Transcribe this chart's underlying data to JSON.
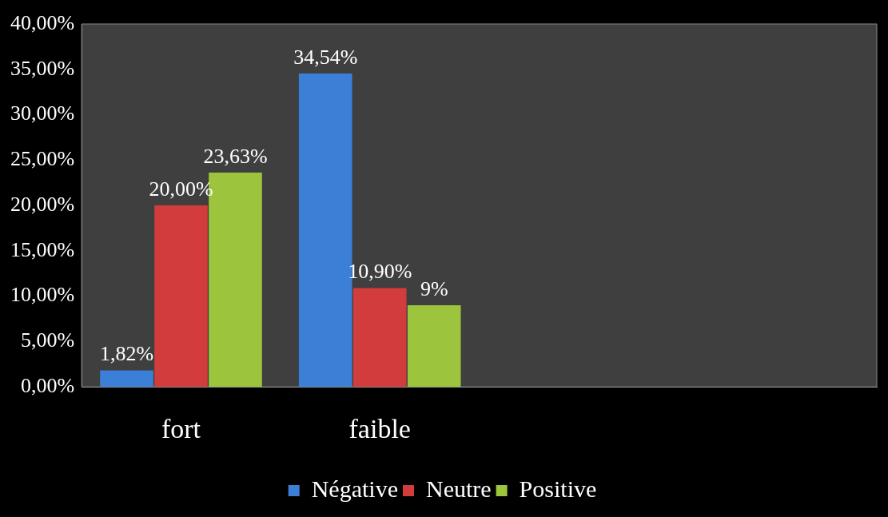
{
  "chart_data": {
    "type": "bar",
    "categories": [
      "fort",
      "faible",
      null,
      null
    ],
    "series": [
      {
        "name": "Négative",
        "color": "#3c7fd6",
        "values": [
          1.82,
          34.54,
          null,
          null
        ],
        "value_labels": [
          "1,82%",
          "34,54%",
          null,
          null
        ]
      },
      {
        "name": "Neutre",
        "color": "#d33c3c",
        "values": [
          20,
          10.9,
          null,
          null
        ],
        "value_labels": [
          "20,00%",
          "10,90%",
          null,
          null
        ]
      },
      {
        "name": "Positive",
        "color": "#9cc43c",
        "values": [
          23.63,
          9,
          null,
          null
        ],
        "value_labels": [
          "23,63%",
          "9%",
          null,
          null
        ]
      }
    ],
    "ylim": [
      0,
      40
    ],
    "yticks": [
      {
        "value": 0,
        "label": "0,00%"
      },
      {
        "value": 5,
        "label": "5,00%"
      },
      {
        "value": 10,
        "label": "10,00%"
      },
      {
        "value": 15,
        "label": "15,00%"
      },
      {
        "value": 20,
        "label": "20,00%"
      },
      {
        "value": 25,
        "label": "25,00%"
      },
      {
        "value": 30,
        "label": "30,00%"
      },
      {
        "value": 35,
        "label": "35,00%"
      },
      {
        "value": 40,
        "label": "40,00%"
      }
    ],
    "grid": false,
    "legend": "bottom"
  }
}
